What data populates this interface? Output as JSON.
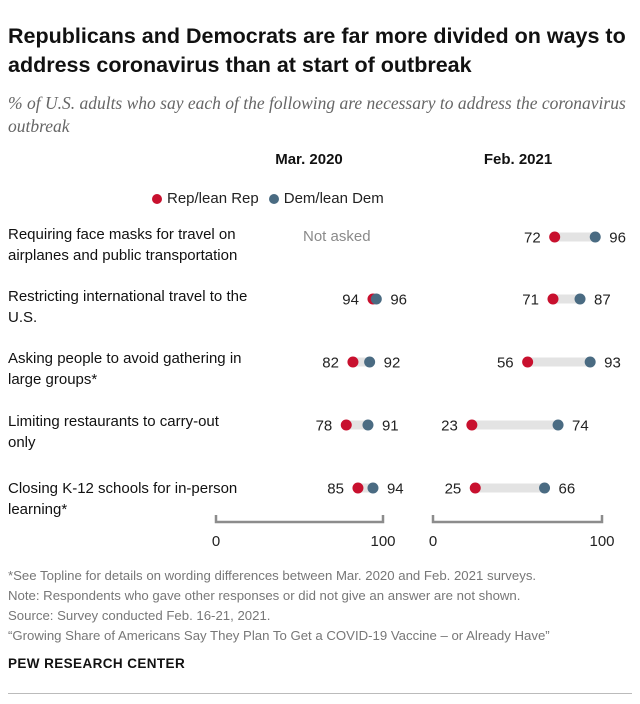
{
  "title": "Republicans and Democrats are far more divided on ways to address coronavirus than at start of outbreak",
  "subtitle": "% of U.S. adults who say each of the following are necessary to address the coronavirus outbreak",
  "colors": {
    "rep": "#c8102e",
    "dem": "#4a6b82",
    "range_bar": "#e3e3e3",
    "axis": "#8c8c8c"
  },
  "legend": {
    "rep": "Rep/lean Rep",
    "dem": "Dem/lean Dem"
  },
  "chart_data": {
    "type": "dot",
    "panels": [
      {
        "title": "Mar. 2020",
        "xlim": [
          0,
          100
        ],
        "tick_labels": [
          "0",
          "100"
        ]
      },
      {
        "title": "Feb. 2021",
        "xlim": [
          0,
          100
        ],
        "tick_labels": [
          "0",
          "100"
        ]
      }
    ],
    "categories": [
      "Requiring face masks for travel on airplanes and public transportation",
      "Restricting international travel to the U.S.",
      "Asking people to avoid gathering in large groups*",
      "Limiting restaurants to carry-out only",
      "Closing K-12 schools for in-person learning*"
    ],
    "series": [
      {
        "name": "Rep/lean Rep",
        "mar2020": [
          null,
          94,
          82,
          78,
          85
        ],
        "feb2021": [
          72,
          71,
          56,
          23,
          25
        ]
      },
      {
        "name": "Dem/lean Dem",
        "mar2020": [
          null,
          96,
          92,
          91,
          94
        ],
        "feb2021": [
          96,
          87,
          93,
          74,
          66
        ]
      }
    ],
    "not_asked_label": "Not asked"
  },
  "notes": [
    "*See Topline for details on wording differences between Mar. 2020 and Feb. 2021 surveys.",
    "Note: Respondents who gave other responses or did not give an answer are not shown.",
    "Source: Survey conducted Feb. 16-21, 2021.",
    "“Growing Share of Americans Say They Plan To Get a COVID-19 Vaccine – or Already Have”"
  ],
  "brand": "PEW RESEARCH CENTER"
}
